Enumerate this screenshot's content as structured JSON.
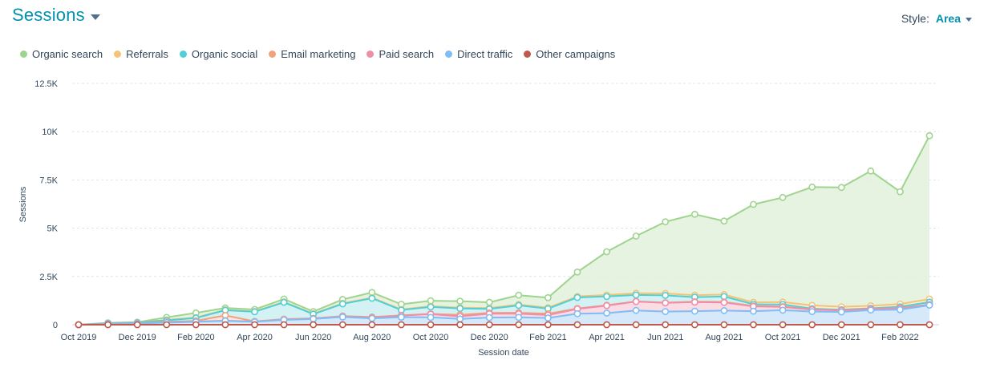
{
  "header": {
    "title": "Sessions",
    "style_label": "Style:",
    "style_value": "Area"
  },
  "chart_data": {
    "type": "area",
    "stacked": true,
    "xlabel": "Session date",
    "ylabel": "Sessions",
    "ylim": [
      0,
      12500
    ],
    "yticks": [
      {
        "value": 0,
        "label": "0"
      },
      {
        "value": 2500,
        "label": "2.5K"
      },
      {
        "value": 5000,
        "label": "5K"
      },
      {
        "value": 7500,
        "label": "7.5K"
      },
      {
        "value": 10000,
        "label": "10K"
      },
      {
        "value": 12500,
        "label": "12.5K"
      }
    ],
    "x": [
      "Oct 2019",
      "Nov 2019",
      "Dec 2019",
      "Jan 2020",
      "Feb 2020",
      "Mar 2020",
      "Apr 2020",
      "May 2020",
      "Jun 2020",
      "Jul 2020",
      "Aug 2020",
      "Sep 2020",
      "Oct 2020",
      "Nov 2020",
      "Dec 2020",
      "Jan 2021",
      "Feb 2021",
      "Mar 2021",
      "Apr 2021",
      "May 2021",
      "Jun 2021",
      "Jul 2021",
      "Aug 2021",
      "Sep 2021",
      "Oct 2021",
      "Nov 2021",
      "Dec 2021",
      "Jan 2022",
      "Feb 2022",
      "Mar 2022"
    ],
    "xticks": [
      {
        "index": 0,
        "label": "Oct 2019"
      },
      {
        "index": 2,
        "label": "Dec 2019"
      },
      {
        "index": 4,
        "label": "Feb 2020"
      },
      {
        "index": 6,
        "label": "Apr 2020"
      },
      {
        "index": 8,
        "label": "Jun 2020"
      },
      {
        "index": 10,
        "label": "Aug 2020"
      },
      {
        "index": 12,
        "label": "Oct 2020"
      },
      {
        "index": 14,
        "label": "Dec 2020"
      },
      {
        "index": 16,
        "label": "Feb 2021"
      },
      {
        "index": 18,
        "label": "Apr 2021"
      },
      {
        "index": 20,
        "label": "Jun 2021"
      },
      {
        "index": 22,
        "label": "Aug 2021"
      },
      {
        "index": 24,
        "label": "Oct 2021"
      },
      {
        "index": 26,
        "label": "Dec 2021"
      },
      {
        "index": 28,
        "label": "Feb 2022"
      }
    ],
    "grid": true,
    "legend_position": "top-left",
    "series": [
      {
        "name": "Other campaigns",
        "color": "#c0594b",
        "fill": "#f0d4d0",
        "values": [
          0,
          0,
          0,
          0,
          0,
          0,
          0,
          0,
          0,
          0,
          0,
          0,
          0,
          0,
          0,
          0,
          0,
          0,
          0,
          0,
          0,
          0,
          0,
          0,
          0,
          0,
          0,
          0,
          0,
          0
        ]
      },
      {
        "name": "Direct traffic",
        "color": "#7fbdf5",
        "fill": "#cfe5fa",
        "values": [
          0,
          40,
          60,
          110,
          150,
          200,
          150,
          250,
          300,
          400,
          330,
          390,
          380,
          300,
          370,
          380,
          350,
          570,
          600,
          740,
          680,
          700,
          730,
          700,
          750,
          680,
          660,
          760,
          780,
          1010
        ]
      },
      {
        "name": "Paid search",
        "color": "#ef8ea8",
        "fill": "#f9d6e0",
        "values": [
          0,
          5,
          5,
          10,
          10,
          10,
          10,
          10,
          20,
          30,
          40,
          80,
          170,
          130,
          200,
          190,
          150,
          250,
          390,
          460,
          450,
          470,
          420,
          250,
          170,
          100,
          80,
          60,
          70,
          30
        ]
      },
      {
        "name": "Email marketing",
        "color": "#f0a27c",
        "fill": "#fbe0d2",
        "values": [
          0,
          10,
          10,
          30,
          40,
          270,
          10,
          30,
          10,
          20,
          30,
          10,
          10,
          80,
          40,
          50,
          70,
          20,
          20,
          10,
          10,
          20,
          30,
          20,
          20,
          10,
          10,
          10,
          10,
          10
        ]
      },
      {
        "name": "Organic social",
        "color": "#4fcfd6",
        "fill": "#cdeff1",
        "values": [
          0,
          25,
          35,
          80,
          150,
          270,
          500,
          870,
          220,
          630,
          970,
          280,
          360,
          330,
          210,
          380,
          260,
          570,
          450,
          330,
          380,
          240,
          280,
          90,
          110,
          40,
          30,
          20,
          70,
          120
        ]
      },
      {
        "name": "Referrals",
        "color": "#f5c378",
        "fill": "#fbe9cc",
        "values": [
          0,
          10,
          10,
          20,
          20,
          20,
          20,
          20,
          20,
          30,
          30,
          30,
          40,
          40,
          40,
          50,
          50,
          50,
          80,
          90,
          100,
          100,
          100,
          100,
          120,
          170,
          150,
          130,
          140,
          160
        ]
      },
      {
        "name": "Organic search",
        "color": "#9fd48e",
        "fill": "#e2f1dc",
        "values": [
          0,
          10,
          10,
          130,
          240,
          100,
          100,
          150,
          110,
          200,
          270,
          270,
          280,
          340,
          300,
          480,
          520,
          1270,
          2240,
          2960,
          3710,
          4190,
          3810,
          5070,
          5420,
          6130,
          6180,
          6980,
          5820,
          8460
        ]
      }
    ]
  },
  "legend_order": [
    "Organic search",
    "Referrals",
    "Organic social",
    "Email marketing",
    "Paid search",
    "Direct traffic",
    "Other campaigns"
  ]
}
